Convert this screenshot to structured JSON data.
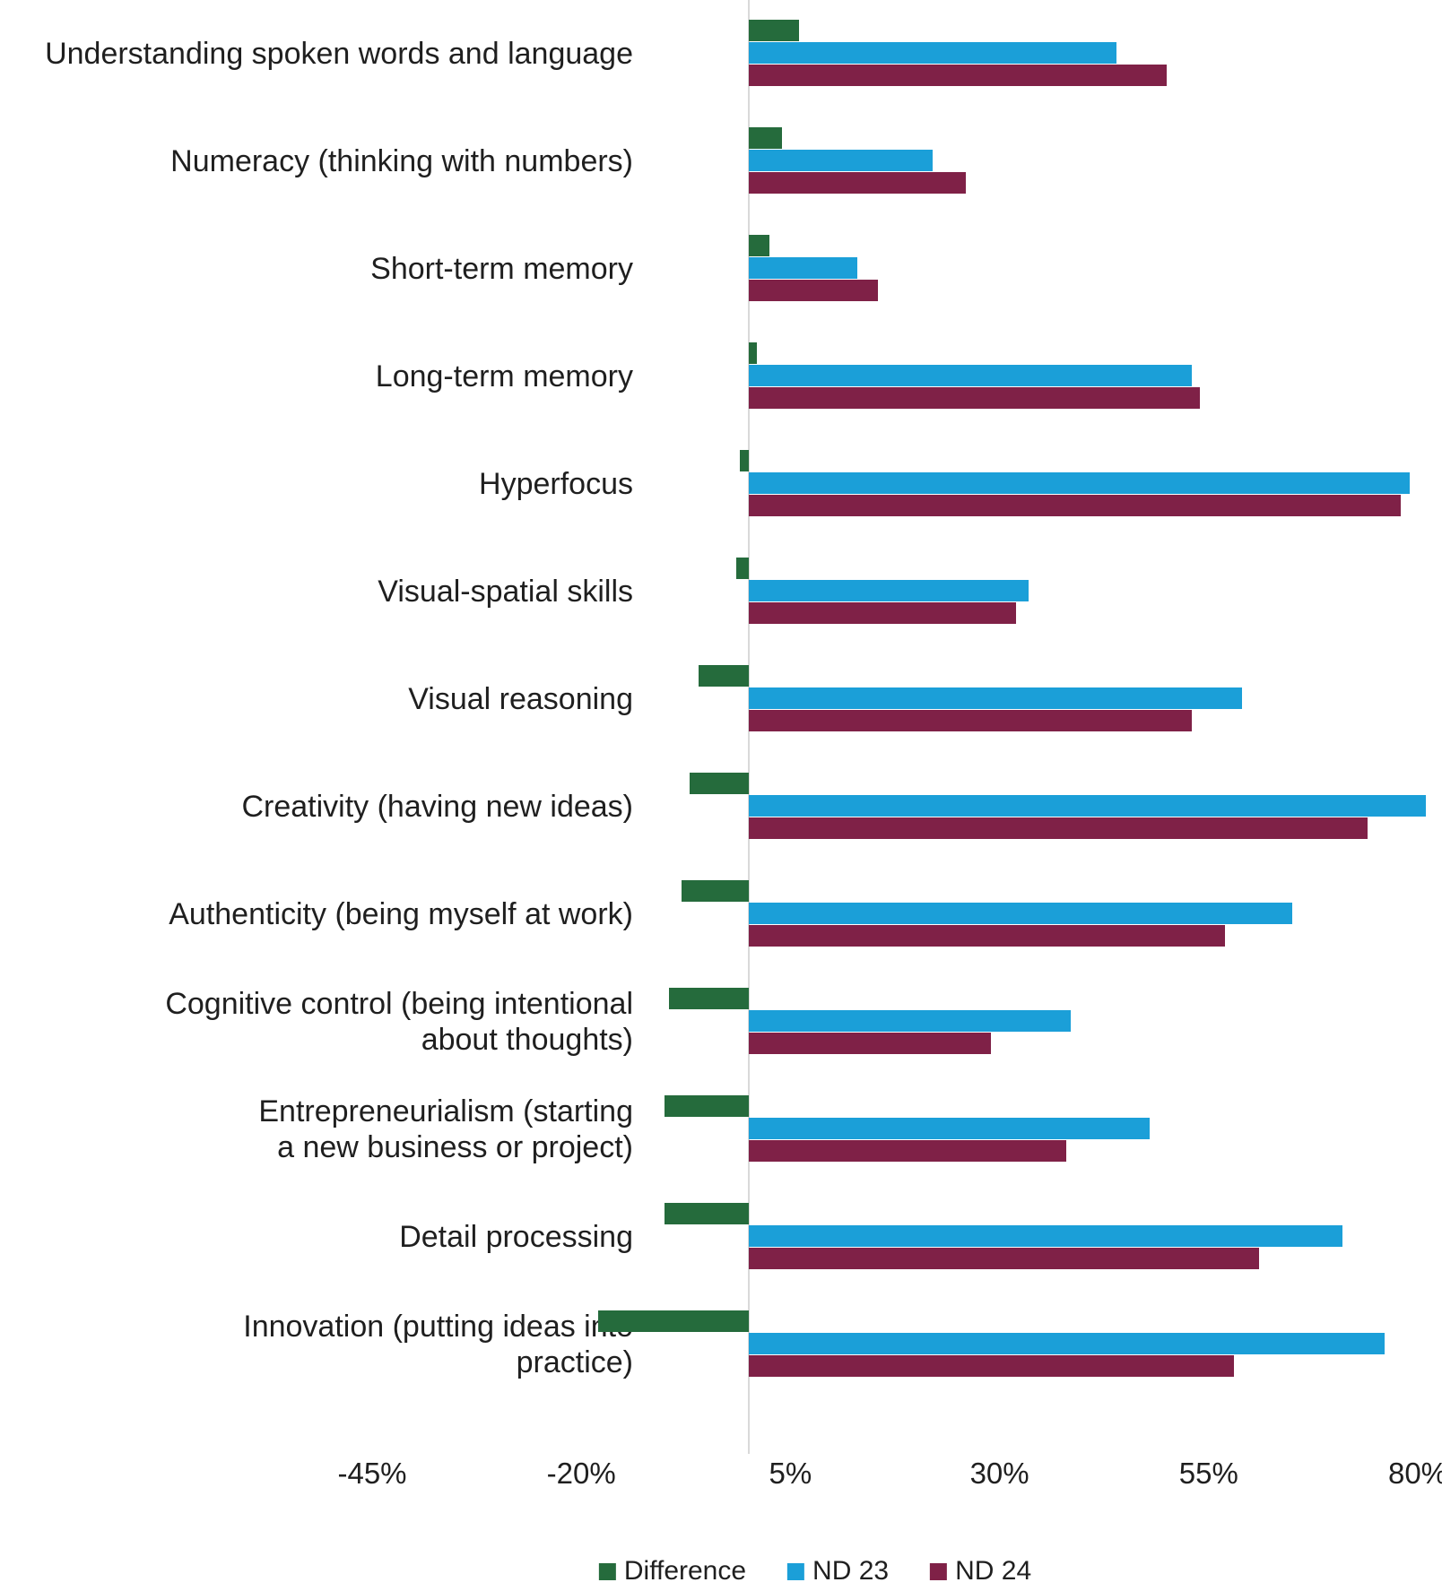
{
  "chart_data": {
    "type": "bar",
    "orientation": "horizontal",
    "title": "",
    "categories": [
      "Understanding spoken words and language",
      "Numeracy (thinking with numbers)",
      "Short-term memory",
      "Long-term memory",
      "Hyperfocus",
      "Visual-spatial skills",
      "Visual reasoning",
      "Creativity (having new ideas)",
      "Authenticity (being myself at work)",
      "Cognitive control (being intentional\nabout thoughts)",
      "Entrepreneurialism (starting\na new business or project)",
      "Detail processing",
      "Innovation (putting ideas into\npractice)"
    ],
    "series": [
      {
        "name": "Difference",
        "color": "#256b3c",
        "values": [
          6,
          4,
          2.5,
          1,
          -1,
          -1.5,
          -6,
          -7,
          -8,
          -9.5,
          -10,
          -10,
          -18
        ]
      },
      {
        "name": "ND 23",
        "color": "#1b9fd8",
        "values": [
          44,
          22,
          13,
          53,
          79,
          33.5,
          59,
          81,
          65,
          38.5,
          48,
          71,
          76
        ]
      },
      {
        "name": "ND 24",
        "color": "#7f2147",
        "values": [
          50,
          26,
          15.5,
          54,
          78,
          32,
          53,
          74,
          57,
          29,
          38,
          61,
          58
        ]
      }
    ],
    "x_axis": {
      "min": -45,
      "max": 80,
      "tick_step": 25,
      "tick_labels": [
        "-45%",
        "-20%",
        "5%",
        "30%",
        "55%",
        "80%"
      ],
      "unit": "%"
    },
    "legend": {
      "position": "bottom",
      "entries": [
        "Difference",
        "ND 23",
        "ND 24"
      ]
    },
    "grid": false,
    "zero_baseline": true
  },
  "colors": {
    "background": "#ffffff",
    "axis_line": "#d9d9d9",
    "text": "#1f1f1f"
  }
}
